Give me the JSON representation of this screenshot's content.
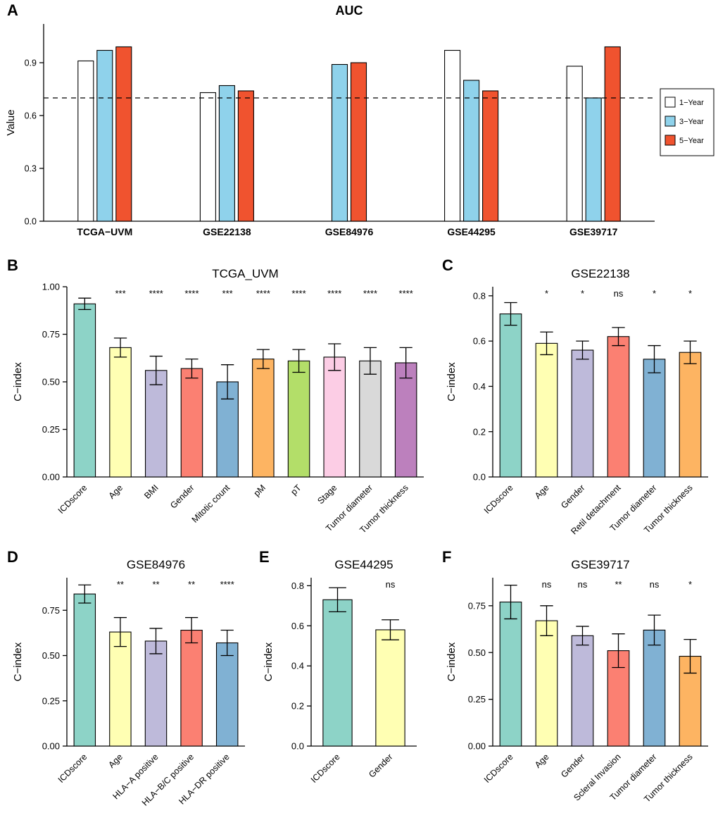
{
  "figure": {
    "background": "#FFFFFF"
  },
  "panels": [
    {
      "id": "A",
      "label": "A"
    },
    {
      "id": "B",
      "label": "B"
    },
    {
      "id": "C",
      "label": "C"
    },
    {
      "id": "D",
      "label": "D"
    },
    {
      "id": "E",
      "label": "E"
    },
    {
      "id": "F",
      "label": "F"
    }
  ],
  "palette": {
    "set3": [
      "#8DD3C7",
      "#FFFFB3",
      "#BEBADA",
      "#FB8072",
      "#80B1D3",
      "#FDB462",
      "#B3DE69",
      "#FCCDE5",
      "#D9D9D9",
      "#BC80BD"
    ],
    "one_year": "#FFFFFF",
    "three_year": "#8FD2EB",
    "five_year": "#F0532F"
  },
  "chart_data": [
    {
      "id": "A",
      "type": "bar",
      "grouped": true,
      "title": "AUC",
      "title_bold": true,
      "ylabel": "Value",
      "ylim": [
        0,
        1.12
      ],
      "yticks": [
        {
          "v": 0.0,
          "label": "0.0"
        },
        {
          "v": 0.3,
          "label": "0.3"
        },
        {
          "v": 0.6,
          "label": "0.6"
        },
        {
          "v": 0.9,
          "label": "0.9"
        }
      ],
      "categories": [
        "TCGA−UVM",
        "GSE22138",
        "GSE84976",
        "GSE44295",
        "GSE39717"
      ],
      "series": [
        {
          "name": "1−Year",
          "color": "#FFFFFF",
          "values": [
            0.91,
            0.73,
            null,
            0.97,
            0.88
          ]
        },
        {
          "name": "3−Year",
          "color": "#8FD2EB",
          "values": [
            0.97,
            0.77,
            0.89,
            0.8,
            0.7
          ]
        },
        {
          "name": "5−Year",
          "color": "#F0532F",
          "values": [
            0.99,
            0.74,
            0.9,
            0.74,
            0.99
          ]
        }
      ],
      "reference_line": 0.7,
      "legend_position": "right"
    },
    {
      "id": "B",
      "type": "bar",
      "title": "TCGA_UVM",
      "ylabel": "C−index",
      "ylim": [
        0,
        1.0
      ],
      "yticks": [
        {
          "v": 0.0,
          "label": "0.00"
        },
        {
          "v": 0.25,
          "label": "0.25"
        },
        {
          "v": 0.5,
          "label": "0.50"
        },
        {
          "v": 0.75,
          "label": "0.75"
        },
        {
          "v": 1.0,
          "label": "1.00"
        }
      ],
      "bars": [
        {
          "category": "ICDscore",
          "value": 0.91,
          "error": 0.03,
          "sig": "",
          "color": "#8DD3C7"
        },
        {
          "category": "Age",
          "value": 0.68,
          "error": 0.05,
          "sig": "***",
          "color": "#FFFFB3"
        },
        {
          "category": "BMI",
          "value": 0.56,
          "error": 0.075,
          "sig": "****",
          "color": "#BEBADA"
        },
        {
          "category": "Gender",
          "value": 0.57,
          "error": 0.05,
          "sig": "****",
          "color": "#FB8072"
        },
        {
          "category": "Mitotic count",
          "value": 0.5,
          "error": 0.09,
          "sig": "***",
          "color": "#80B1D3"
        },
        {
          "category": "pM",
          "value": 0.62,
          "error": 0.05,
          "sig": "****",
          "color": "#FDB462"
        },
        {
          "category": "pT",
          "value": 0.61,
          "error": 0.06,
          "sig": "****",
          "color": "#B3DE69"
        },
        {
          "category": "Stage",
          "value": 0.63,
          "error": 0.07,
          "sig": "****",
          "color": "#FCCDE5"
        },
        {
          "category": "Tumor diameter",
          "value": 0.61,
          "error": 0.07,
          "sig": "****",
          "color": "#D9D9D9"
        },
        {
          "category": "Tumor thickness",
          "value": 0.6,
          "error": 0.08,
          "sig": "****",
          "color": "#BC80BD"
        }
      ]
    },
    {
      "id": "C",
      "type": "bar",
      "title": "GSE22138",
      "ylabel": "C−index",
      "ylim": [
        0,
        0.84
      ],
      "yticks": [
        {
          "v": 0.0,
          "label": "0.0"
        },
        {
          "v": 0.2,
          "label": "0.2"
        },
        {
          "v": 0.4,
          "label": "0.4"
        },
        {
          "v": 0.6,
          "label": "0.6"
        },
        {
          "v": 0.8,
          "label": "0.8"
        }
      ],
      "bars": [
        {
          "category": "ICDscore",
          "value": 0.72,
          "error": 0.05,
          "sig": "",
          "color": "#8DD3C7"
        },
        {
          "category": "Age",
          "value": 0.59,
          "error": 0.05,
          "sig": "*",
          "color": "#FFFFB3"
        },
        {
          "category": "Gender",
          "value": 0.56,
          "error": 0.04,
          "sig": "*",
          "color": "#BEBADA"
        },
        {
          "category": "Retil detachment",
          "value": 0.62,
          "error": 0.04,
          "sig": "ns",
          "color": "#FB8072"
        },
        {
          "category": "Tumor diameter",
          "value": 0.52,
          "error": 0.06,
          "sig": "*",
          "color": "#80B1D3"
        },
        {
          "category": "Tumor thickness",
          "value": 0.55,
          "error": 0.05,
          "sig": "*",
          "color": "#FDB462"
        }
      ]
    },
    {
      "id": "D",
      "type": "bar",
      "title": "GSE84976",
      "ylabel": "C−index",
      "ylim": [
        0,
        0.93
      ],
      "yticks": [
        {
          "v": 0.0,
          "label": "0.00"
        },
        {
          "v": 0.25,
          "label": "0.25"
        },
        {
          "v": 0.5,
          "label": "0.50"
        },
        {
          "v": 0.75,
          "label": "0.75"
        }
      ],
      "bars": [
        {
          "category": "ICDscore",
          "value": 0.84,
          "error": 0.05,
          "sig": "",
          "color": "#8DD3C7"
        },
        {
          "category": "Age",
          "value": 0.63,
          "error": 0.08,
          "sig": "**",
          "color": "#FFFFB3"
        },
        {
          "category": "HLA−A positive",
          "value": 0.58,
          "error": 0.07,
          "sig": "**",
          "color": "#BEBADA"
        },
        {
          "category": "HLA−B/C positive",
          "value": 0.64,
          "error": 0.07,
          "sig": "**",
          "color": "#FB8072"
        },
        {
          "category": "HLA−DR positive",
          "value": 0.57,
          "error": 0.07,
          "sig": "****",
          "color": "#80B1D3"
        }
      ]
    },
    {
      "id": "E",
      "type": "bar",
      "title": "GSE44295",
      "ylabel": "C−index",
      "ylim": [
        0,
        0.84
      ],
      "yticks": [
        {
          "v": 0.0,
          "label": "0.0"
        },
        {
          "v": 0.2,
          "label": "0.2"
        },
        {
          "v": 0.4,
          "label": "0.4"
        },
        {
          "v": 0.6,
          "label": "0.6"
        },
        {
          "v": 0.8,
          "label": "0.8"
        }
      ],
      "bars": [
        {
          "category": "ICDscore",
          "value": 0.73,
          "error": 0.06,
          "sig": "",
          "color": "#8DD3C7"
        },
        {
          "category": "Gender",
          "value": 0.58,
          "error": 0.05,
          "sig": "ns",
          "color": "#FFFFB3"
        }
      ]
    },
    {
      "id": "F",
      "type": "bar",
      "title": "GSE39717",
      "ylabel": "C−index",
      "ylim": [
        0,
        0.9
      ],
      "yticks": [
        {
          "v": 0.0,
          "label": "0.00"
        },
        {
          "v": 0.25,
          "label": "0.25"
        },
        {
          "v": 0.5,
          "label": "0.50"
        },
        {
          "v": 0.75,
          "label": "0.75"
        }
      ],
      "bars": [
        {
          "category": "ICDscore",
          "value": 0.77,
          "error": 0.09,
          "sig": "",
          "color": "#8DD3C7"
        },
        {
          "category": "Age",
          "value": 0.67,
          "error": 0.08,
          "sig": "ns",
          "color": "#FFFFB3"
        },
        {
          "category": "Gender",
          "value": 0.59,
          "error": 0.05,
          "sig": "ns",
          "color": "#BEBADA"
        },
        {
          "category": "Scleral Invasion",
          "value": 0.51,
          "error": 0.09,
          "sig": "**",
          "color": "#FB8072"
        },
        {
          "category": "Tumor diameter",
          "value": 0.62,
          "error": 0.08,
          "sig": "ns",
          "color": "#80B1D3"
        },
        {
          "category": "Tumor thickness",
          "value": 0.48,
          "error": 0.09,
          "sig": "*",
          "color": "#FDB462"
        }
      ]
    }
  ]
}
